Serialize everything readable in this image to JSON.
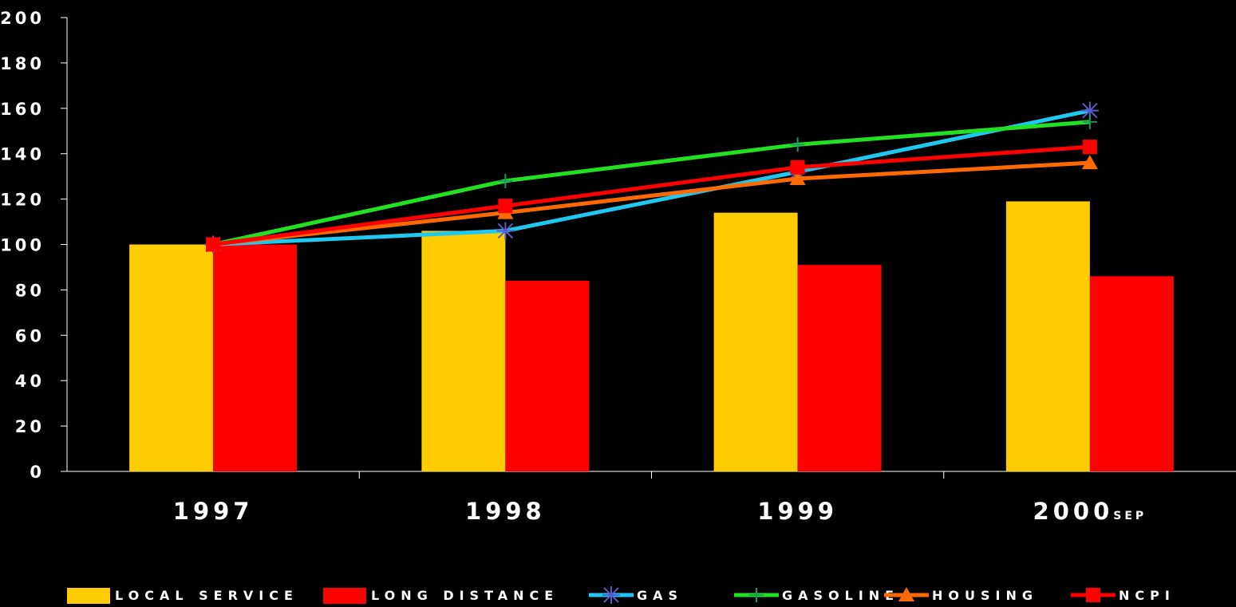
{
  "chart_data": {
    "type": "bar",
    "categories": [
      "1997",
      "1998",
      "1999",
      "2000sep"
    ],
    "category_labels": [
      {
        "main": "1997",
        "suffix": ""
      },
      {
        "main": "1998",
        "suffix": ""
      },
      {
        "main": "1999",
        "suffix": ""
      },
      {
        "main": "2000",
        "suffix": "SEP"
      }
    ],
    "ylim": [
      0,
      200
    ],
    "yticks": [
      0,
      20,
      40,
      60,
      80,
      100,
      120,
      140,
      160,
      180,
      200
    ],
    "grid": false,
    "legend_position": "bottom",
    "bar_series": [
      {
        "name": "LOCAL SERVICE",
        "color": "#FFCC00",
        "values": [
          100,
          106,
          114,
          119
        ]
      },
      {
        "name": "LONG DISTANCE",
        "color": "#FF0000",
        "values": [
          100,
          84,
          91,
          86
        ]
      }
    ],
    "line_series": [
      {
        "name": "GAS",
        "color": "#1EC8F0",
        "marker": "asterisk",
        "marker_color": "#5B5BC8",
        "values": [
          100,
          106,
          132,
          159
        ]
      },
      {
        "name": "GASOLINE",
        "color": "#22E022",
        "marker": "plus",
        "marker_color": "#1A9A5A",
        "values": [
          100,
          128,
          144,
          154
        ]
      },
      {
        "name": "HOUSING",
        "color": "#FF6A00",
        "marker": "triangle",
        "marker_color": "#FF6A00",
        "values": [
          100,
          114,
          129,
          136
        ]
      },
      {
        "name": "NCPI",
        "color": "#FF0000",
        "marker": "square",
        "marker_color": "#FF0000",
        "values": [
          100,
          117,
          134,
          143
        ]
      }
    ]
  }
}
